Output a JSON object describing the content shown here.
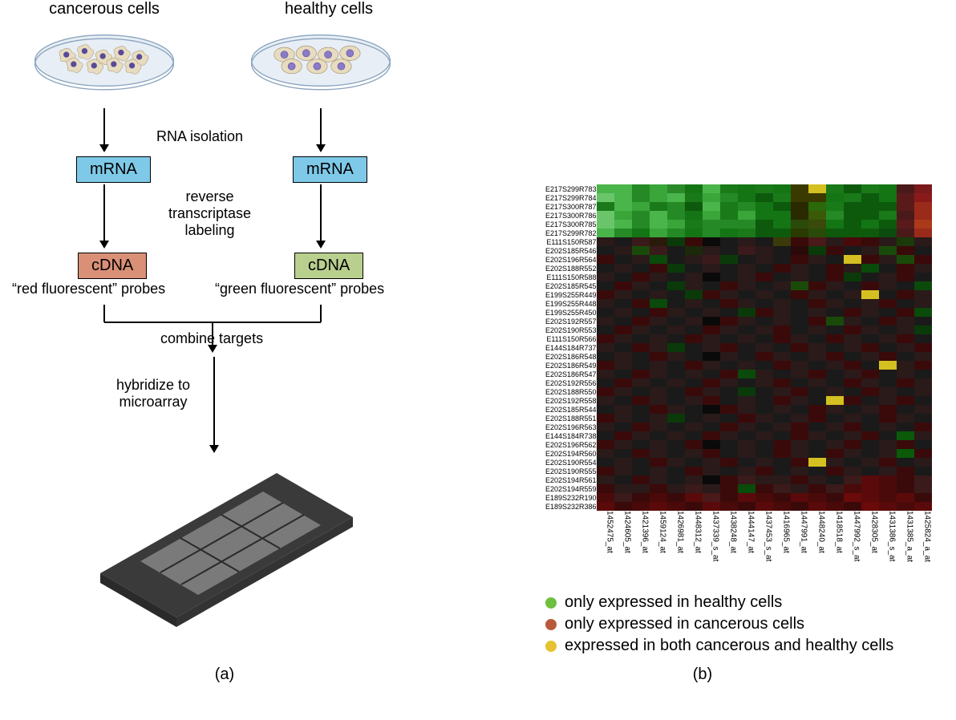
{
  "panelA": {
    "cancerous_label": "cancerous cells",
    "healthy_label": "healthy cells",
    "rna_isolation": "RNA isolation",
    "mrna": "mRNA",
    "reverse_transcriptase": "reverse\ntranscriptase\nlabeling",
    "cdna": "cDNA",
    "red_probes": "“red fluorescent” probes",
    "green_probes": "“green fluorescent” probes",
    "combine_targets": "combine targets",
    "hybridize": "hybridize to\nmicroarray",
    "caption": "(a)"
  },
  "panelB": {
    "caption": "(b)",
    "row_labels": [
      "E217S299R783",
      "E217S299R784",
      "E217S300R787",
      "E217S300R786",
      "E217S300R785",
      "E217S299R782",
      "E111S150R587",
      "E202S185R546",
      "E202S196R564",
      "E202S188R552",
      "E111S150R588",
      "E202S185R545",
      "E199S255R449",
      "E199S255R448",
      "E199S255R450",
      "E202S192R557",
      "E202S190R553",
      "E111S150R566",
      "E144S184R737",
      "E202S186R548",
      "E202S186R549",
      "E202S186R547",
      "E202S192R556",
      "E202S188R550",
      "E202S192R558",
      "E202S185R544",
      "E202S188R551",
      "E202S196R563",
      "E144S184R738",
      "E202S196R562",
      "E202S194R560",
      "E202S190R554",
      "E202S190R555",
      "E202S194R561",
      "E202S194R559",
      "E189S232R190",
      "E189S232R386"
    ],
    "col_labels": [
      "1452475_at",
      "1424605_at",
      "1421396_at",
      "1459124_at",
      "1426981_at",
      "1448312_at",
      "1437339_s_at",
      "1438248_at",
      "1444147_at",
      "1437453_s_at",
      "1416965_at",
      "1447991_at",
      "1448240_at",
      "1418518_at",
      "1447992_s_at",
      "1428305_at",
      "1431386_s_at",
      "1431385_a_at",
      "1425824_a_at"
    ],
    "heatmap_colors": [
      [
        "#4ab54a",
        "#4ab54a",
        "#258a25",
        "#3aa63a",
        "#2a8a2a",
        "#147514",
        "#4ab54a",
        "#1a7a1a",
        "#147514",
        "#1a7a1a",
        "#147514",
        "#3a3a00",
        "#d4c020",
        "#1a7a1a",
        "#0d5a0d",
        "#1a7a1a",
        "#147514",
        "#4a1a1a",
        "#7a1a1a"
      ],
      [
        "#6ac56a",
        "#4ab54a",
        "#258a25",
        "#3aa63a",
        "#4ab54a",
        "#1a7a1a",
        "#3aa63a",
        "#258a25",
        "#147514",
        "#0d5a0d",
        "#1a7a1a",
        "#3a3a00",
        "#3a3a00",
        "#147514",
        "#1a7a1a",
        "#0d5a0d",
        "#147514",
        "#5a1a1a",
        "#8a1a1a"
      ],
      [
        "#1a7a1a",
        "#4ab54a",
        "#3aa63a",
        "#1a7a1a",
        "#258a25",
        "#0d5a0d",
        "#4ab54a",
        "#1a7a1a",
        "#258a25",
        "#147514",
        "#0d5a0d",
        "#2a2a00",
        "#2a6a0a",
        "#1a7a1a",
        "#0d5a0d",
        "#0d5a0d",
        "#0d5a0d",
        "#5a1a1a",
        "#9a2a1a"
      ],
      [
        "#6ac56a",
        "#3aa63a",
        "#258a25",
        "#4ab54a",
        "#258a25",
        "#147514",
        "#3aa63a",
        "#1a7a1a",
        "#3aa63a",
        "#147514",
        "#147514",
        "#2a2a00",
        "#3a5a0a",
        "#258a25",
        "#0d5a0d",
        "#0d5a0d",
        "#1a7a1a",
        "#4a1a1a",
        "#9a2a1a"
      ],
      [
        "#6ac56a",
        "#4ab54a",
        "#258a25",
        "#4ab54a",
        "#3aa63a",
        "#1a7a1a",
        "#258a25",
        "#258a25",
        "#258a25",
        "#0d5a0d",
        "#147514",
        "#2a4a0a",
        "#3a4a0a",
        "#147514",
        "#0d5a0d",
        "#147514",
        "#0d5a0d",
        "#5a1a1a",
        "#aa3a1a"
      ],
      [
        "#4ab54a",
        "#258a25",
        "#147514",
        "#3aa63a",
        "#258a25",
        "#147514",
        "#258a25",
        "#147514",
        "#1a7a1a",
        "#0d5a0d",
        "#0d5a0d",
        "#2a3a00",
        "#2a4a0a",
        "#0d5a0d",
        "#0d5a0d",
        "#0d5a0d",
        "#0d4a0d",
        "#4a1a1a",
        "#9a2a1a"
      ],
      [
        "#2a1a1a",
        "#1a1a1a",
        "#3a1a1a",
        "#2a1a0a",
        "#0a3a0a",
        "#3a0a0a",
        "#0a0a0a",
        "#1a1a1a",
        "#2a1a1a",
        "#1a1a1a",
        "#3a3a0a",
        "#3a0a0a",
        "#4a1a1a",
        "#2a1a1a",
        "#4a0a0a",
        "#3a0a0a",
        "#2a1a1a",
        "#1a3a0a",
        "#2a1a1a"
      ],
      [
        "#1a1a1a",
        "#2a1a1a",
        "#1a4a0a",
        "#3a1a1a",
        "#1a1a1a",
        "#1a2a0a",
        "#2a1a1a",
        "#1a1a1a",
        "#3a1a1a",
        "#2a1a1a",
        "#1a1a1a",
        "#2a0a0a",
        "#0a3a0a",
        "#3a0a0a",
        "#1a1a1a",
        "#2a1a1a",
        "#1a4a0a",
        "#3a0a0a",
        "#1a1a1a"
      ],
      [
        "#3a0a0a",
        "#1a1a1a",
        "#2a1a1a",
        "#0a4a0a",
        "#1a1a1a",
        "#2a1a1a",
        "#3a1a1a",
        "#0a3a0a",
        "#1a1a1a",
        "#2a1a1a",
        "#1a1a1a",
        "#3a0a0a",
        "#2a1a1a",
        "#1a1a1a",
        "#d4c020",
        "#3a0a0a",
        "#2a1a1a",
        "#1a4a0a",
        "#3a0a0a"
      ],
      [
        "#1a1a1a",
        "#2a1a1a",
        "#1a1a1a",
        "#3a0a0a",
        "#0a3a0a",
        "#1a1a1a",
        "#2a1a1a",
        "#1a1a1a",
        "#2a1a1a",
        "#1a1a1a",
        "#3a0a0a",
        "#2a1a1a",
        "#1a1a1a",
        "#3a0a0a",
        "#2a1a1a",
        "#0a4a0a",
        "#1a1a1a",
        "#3a0a0a",
        "#2a1a1a"
      ],
      [
        "#2a1a1a",
        "#1a1a1a",
        "#3a0a0a",
        "#2a1a1a",
        "#1a1a1a",
        "#2a1a1a",
        "#0a0a0a",
        "#1a1a1a",
        "#2a1a1a",
        "#3a0a0a",
        "#1a1a1a",
        "#2a1a1a",
        "#1a1a1a",
        "#3a0a0a",
        "#0a3a0a",
        "#1a1a1a",
        "#2a1a1a",
        "#3a0a0a",
        "#1a1a1a"
      ],
      [
        "#1a1a1a",
        "#3a0a0a",
        "#2a1a1a",
        "#1a1a1a",
        "#0a3a0a",
        "#2a1a1a",
        "#1a1a1a",
        "#3a0a0a",
        "#2a1a1a",
        "#1a1a1a",
        "#2a1a1a",
        "#1a4a0a",
        "#3a0a0a",
        "#2a1a1a",
        "#1a1a1a",
        "#3a0a0a",
        "#2a1a1a",
        "#1a1a1a",
        "#0a4a0a"
      ],
      [
        "#3a0a0a",
        "#2a1a1a",
        "#1a1a1a",
        "#2a1a1a",
        "#1a1a1a",
        "#0a3a0a",
        "#3a0a0a",
        "#2a1a1a",
        "#1a1a1a",
        "#2a1a1a",
        "#1a1a1a",
        "#3a0a0a",
        "#2a1a1a",
        "#1a1a1a",
        "#2a1a1a",
        "#d4c020",
        "#1a1a1a",
        "#3a0a0a",
        "#2a1a1a"
      ],
      [
        "#2a1a1a",
        "#1a1a1a",
        "#3a0a0a",
        "#0a4a0a",
        "#1a1a1a",
        "#2a1a1a",
        "#1a1a1a",
        "#3a0a0a",
        "#2a1a1a",
        "#1a1a1a",
        "#2a1a1a",
        "#1a1a1a",
        "#3a0a0a",
        "#2a1a1a",
        "#1a1a1a",
        "#2a1a1a",
        "#3a0a0a",
        "#1a1a1a",
        "#2a1a1a"
      ],
      [
        "#1a1a1a",
        "#2a1a1a",
        "#1a1a1a",
        "#3a0a0a",
        "#2a1a1a",
        "#1a1a1a",
        "#2a1a1a",
        "#1a1a1a",
        "#0a3a0a",
        "#3a0a0a",
        "#2a1a1a",
        "#1a1a1a",
        "#2a1a1a",
        "#1a1a1a",
        "#3a0a0a",
        "#2a1a1a",
        "#1a1a1a",
        "#3a0a0a",
        "#0a4a0a"
      ],
      [
        "#2a1a1a",
        "#1a1a1a",
        "#3a0a0a",
        "#2a1a1a",
        "#1a1a1a",
        "#2a1a1a",
        "#0a0a0a",
        "#3a0a0a",
        "#2a1a1a",
        "#1a1a1a",
        "#2a1a1a",
        "#1a1a1a",
        "#3a0a0a",
        "#1a4a0a",
        "#2a1a1a",
        "#1a1a1a",
        "#3a0a0a",
        "#2a1a1a",
        "#1a1a1a"
      ],
      [
        "#1a1a1a",
        "#3a0a0a",
        "#2a1a1a",
        "#1a1a1a",
        "#2a1a1a",
        "#1a1a1a",
        "#3a0a0a",
        "#2a1a1a",
        "#1a1a1a",
        "#2a1a1a",
        "#3a0a0a",
        "#1a1a1a",
        "#2a1a1a",
        "#1a1a1a",
        "#3a0a0a",
        "#2a1a1a",
        "#1a1a1a",
        "#2a1a1a",
        "#0a3a0a"
      ],
      [
        "#3a0a0a",
        "#2a1a1a",
        "#1a1a1a",
        "#2a1a1a",
        "#1a1a1a",
        "#3a0a0a",
        "#2a1a1a",
        "#1a1a1a",
        "#2a1a1a",
        "#1a1a1a",
        "#3a0a0a",
        "#2a1a1a",
        "#1a1a1a",
        "#3a0a0a",
        "#2a1a1a",
        "#1a1a1a",
        "#2a1a1a",
        "#3a0a0a",
        "#1a1a1a"
      ],
      [
        "#2a1a1a",
        "#1a1a1a",
        "#3a0a0a",
        "#2a1a1a",
        "#0a3a0a",
        "#1a1a1a",
        "#2a1a1a",
        "#3a0a0a",
        "#1a1a1a",
        "#2a1a1a",
        "#1a1a1a",
        "#3a0a0a",
        "#2a1a1a",
        "#1a1a1a",
        "#2a1a1a",
        "#3a0a0a",
        "#1a1a1a",
        "#2a1a1a",
        "#3a0a0a"
      ],
      [
        "#1a1a1a",
        "#2a1a1a",
        "#1a1a1a",
        "#3a0a0a",
        "#2a1a1a",
        "#1a1a1a",
        "#0a0a0a",
        "#2a1a1a",
        "#1a1a1a",
        "#3a0a0a",
        "#2a1a1a",
        "#1a1a1a",
        "#2a1a1a",
        "#3a0a0a",
        "#1a1a1a",
        "#2a1a1a",
        "#3a0a0a",
        "#1a1a1a",
        "#2a1a1a"
      ],
      [
        "#3a0a0a",
        "#2a1a1a",
        "#1a1a1a",
        "#2a1a1a",
        "#1a1a1a",
        "#3a0a0a",
        "#2a1a1a",
        "#1a1a1a",
        "#2a1a1a",
        "#1a1a1a",
        "#3a0a0a",
        "#2a1a1a",
        "#1a1a1a",
        "#2a1a1a",
        "#3a0a0a",
        "#1a1a1a",
        "#d4c020",
        "#2a1a1a",
        "#3a0a0a"
      ],
      [
        "#2a1a1a",
        "#1a1a1a",
        "#3a0a0a",
        "#2a1a1a",
        "#1a1a1a",
        "#2a1a1a",
        "#1a1a1a",
        "#3a0a0a",
        "#0a4a0a",
        "#2a1a1a",
        "#1a1a1a",
        "#2a1a1a",
        "#3a0a0a",
        "#1a1a1a",
        "#2a1a1a",
        "#3a0a0a",
        "#1a1a1a",
        "#2a1a1a",
        "#1a1a1a"
      ],
      [
        "#1a1a1a",
        "#3a0a0a",
        "#2a1a1a",
        "#1a1a1a",
        "#2a1a1a",
        "#1a1a1a",
        "#3a0a0a",
        "#2a1a1a",
        "#1a1a1a",
        "#2a1a1a",
        "#3a0a0a",
        "#1a1a1a",
        "#2a1a1a",
        "#1a1a1a",
        "#3a0a0a",
        "#2a1a1a",
        "#1a1a1a",
        "#3a0a0a",
        "#2a1a1a"
      ],
      [
        "#3a0a0a",
        "#2a1a1a",
        "#1a1a1a",
        "#2a1a1a",
        "#1a1a1a",
        "#3a0a0a",
        "#2a1a1a",
        "#1a1a1a",
        "#0a3a0a",
        "#1a1a1a",
        "#2a1a1a",
        "#3a0a0a",
        "#1a1a1a",
        "#2a1a1a",
        "#1a1a1a",
        "#3a0a0a",
        "#2a1a1a",
        "#1a1a1a",
        "#2a1a1a"
      ],
      [
        "#2a1a1a",
        "#1a1a1a",
        "#3a0a0a",
        "#2a1a1a",
        "#1a1a1a",
        "#2a1a1a",
        "#3a0a0a",
        "#1a1a1a",
        "#2a1a1a",
        "#1a1a1a",
        "#3a0a0a",
        "#2a1a1a",
        "#1a1a1a",
        "#d4c020",
        "#3a0a0a",
        "#1a1a1a",
        "#2a1a1a",
        "#3a0a0a",
        "#1a1a1a"
      ],
      [
        "#1a1a1a",
        "#2a1a1a",
        "#1a1a1a",
        "#3a0a0a",
        "#2a1a1a",
        "#1a1a1a",
        "#0a0a0a",
        "#3a0a0a",
        "#2a1a1a",
        "#1a1a1a",
        "#2a1a1a",
        "#1a1a1a",
        "#3a0a0a",
        "#2a1a1a",
        "#1a1a1a",
        "#2a1a1a",
        "#3a0a0a",
        "#1a1a1a",
        "#2a1a1a"
      ],
      [
        "#3a0a0a",
        "#2a1a1a",
        "#1a1a1a",
        "#2a1a1a",
        "#0a3a0a",
        "#1a1a1a",
        "#2a1a1a",
        "#1a1a1a",
        "#3a0a0a",
        "#2a1a1a",
        "#1a1a1a",
        "#2a1a1a",
        "#3a0a0a",
        "#1a1a1a",
        "#2a1a1a",
        "#1a1a1a",
        "#3a0a0a",
        "#2a1a1a",
        "#1a1a1a"
      ],
      [
        "#2a1a1a",
        "#1a1a1a",
        "#3a0a0a",
        "#2a1a1a",
        "#1a1a1a",
        "#2a1a1a",
        "#1a1a1a",
        "#3a0a0a",
        "#2a1a1a",
        "#1a1a1a",
        "#2a1a1a",
        "#3a0a0a",
        "#1a1a1a",
        "#2a1a1a",
        "#3a0a0a",
        "#1a1a1a",
        "#2a1a1a",
        "#1a1a1a",
        "#3a0a0a"
      ],
      [
        "#1a1a1a",
        "#3a0a0a",
        "#2a1a1a",
        "#1a1a1a",
        "#2a1a1a",
        "#1a1a1a",
        "#3a0a0a",
        "#2a1a1a",
        "#1a1a1a",
        "#2a1a1a",
        "#1a1a1a",
        "#3a0a0a",
        "#2a1a1a",
        "#1a1a1a",
        "#2a1a1a",
        "#3a0a0a",
        "#1a1a1a",
        "#0a5a0a",
        "#2a1a1a"
      ],
      [
        "#3a0a0a",
        "#2a1a1a",
        "#1a1a1a",
        "#2a1a1a",
        "#1a1a1a",
        "#3a0a0a",
        "#0a0a0a",
        "#1a1a1a",
        "#2a1a1a",
        "#1a1a1a",
        "#3a0a0a",
        "#2a1a1a",
        "#1a1a1a",
        "#2a1a1a",
        "#3a0a0a",
        "#1a1a1a",
        "#2a1a1a",
        "#3a0a0a",
        "#1a1a1a"
      ],
      [
        "#2a1a1a",
        "#1a1a1a",
        "#3a0a0a",
        "#2a1a1a",
        "#1a1a1a",
        "#2a1a1a",
        "#3a0a0a",
        "#1a1a1a",
        "#2a1a1a",
        "#1a1a1a",
        "#3a0a0a",
        "#2a1a1a",
        "#1a1a1a",
        "#3a0a0a",
        "#2a1a1a",
        "#1a1a1a",
        "#2a1a1a",
        "#0a5a0a",
        "#3a0a0a"
      ],
      [
        "#1a1a1a",
        "#2a1a1a",
        "#1a1a1a",
        "#3a0a0a",
        "#2a1a1a",
        "#1a1a1a",
        "#2a1a1a",
        "#3a0a0a",
        "#1a1a1a",
        "#2a1a1a",
        "#1a1a1a",
        "#3a0a0a",
        "#d4c020",
        "#2a1a1a",
        "#1a1a1a",
        "#2a1a1a",
        "#3a0a0a",
        "#1a1a1a",
        "#2a1a1a"
      ],
      [
        "#3a0a0a",
        "#2a1a1a",
        "#1a1a1a",
        "#2a1a1a",
        "#1a1a1a",
        "#3a0a0a",
        "#2a1a1a",
        "#1a1a1a",
        "#2a1a1a",
        "#3a0a0a",
        "#1a1a1a",
        "#2a1a1a",
        "#1a1a1a",
        "#3a0a0a",
        "#2a1a1a",
        "#1a1a1a",
        "#2a1a1a",
        "#3a0a0a",
        "#1a1a1a"
      ],
      [
        "#2a1a1a",
        "#1a1a1a",
        "#3a0a0a",
        "#2a1a1a",
        "#1a1a1a",
        "#2a1a1a",
        "#0a0a0a",
        "#3a0a0a",
        "#3a1a1a",
        "#2a1a1a",
        "#2a1a1a",
        "#3a0a0a",
        "#2a1a1a",
        "#1a1a1a",
        "#3a1a1a",
        "#5a0a0a",
        "#4a0a0a",
        "#3a0a0a",
        "#3a1a1a"
      ],
      [
        "#3a0a0a",
        "#2a1a1a",
        "#2a1a1a",
        "#3a0a0a",
        "#2a1a1a",
        "#3a1a1a",
        "#2a1a1a",
        "#3a0a0a",
        "#0a4a0a",
        "#3a0a0a",
        "#3a1a1a",
        "#2a1a1a",
        "#3a0a0a",
        "#3a1a1a",
        "#4a0a0a",
        "#5a0a0a",
        "#4a0a0a",
        "#3a0a0a",
        "#3a1a1a"
      ],
      [
        "#4a0a0a",
        "#3a1a1a",
        "#3a0a0a",
        "#4a0a0a",
        "#3a0a0a",
        "#5a0a0a",
        "#4a1a1a",
        "#3a0a0a",
        "#5a0a0a",
        "#4a0a0a",
        "#3a0a0a",
        "#5a0a0a",
        "#4a0a0a",
        "#3a0a0a",
        "#6a0a0a",
        "#5a0a0a",
        "#4a0a0a",
        "#5a0a0a",
        "#3a0a0a"
      ],
      [
        "#5a0a0a",
        "#3a0a0a",
        "#4a0a0a",
        "#5a0a0a",
        "#4a0a0a",
        "#3a0a0a",
        "#5a0a0a",
        "#4a0a0a",
        "#3a0a0a",
        "#5a0a0a",
        "#4a0a0a",
        "#3a0a0a",
        "#5a0a0a",
        "#4a0a0a",
        "#3a0a0a",
        "#6a0a0a",
        "#5a0a0a",
        "#4a0a0a",
        "#5a0a0a"
      ]
    ],
    "legend": [
      {
        "color": "#6fbf3f",
        "label": "only expressed in healthy cells"
      },
      {
        "color": "#b85a3a",
        "label": "only expressed in cancerous cells"
      },
      {
        "color": "#e6c230",
        "label": "expressed in both cancerous and healthy cells"
      }
    ]
  },
  "colors": {
    "dish_rim": "#b8cde0",
    "cell_body": "#e8dcc0",
    "cell_nucleus": "#6a5ba8",
    "mrna_box": "#7ec9e8",
    "cdna_red": "#d99077",
    "cdna_green": "#b9cf8e",
    "chip_dark": "#4a4a4a",
    "chip_light": "#9a9a9a"
  }
}
